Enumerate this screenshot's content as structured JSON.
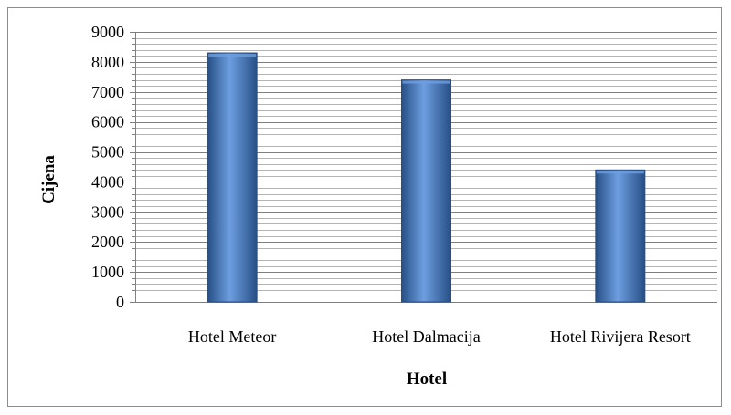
{
  "chart_data": {
    "type": "bar",
    "categories": [
      "Hotel Meteor",
      "Hotel Dalmacija",
      "Hotel Rivijera Resort"
    ],
    "values": [
      8300,
      7400,
      4400
    ],
    "title": "",
    "xlabel": "Hotel",
    "ylabel": "Cijena",
    "ylim": [
      0,
      9000
    ],
    "yticks": [
      0,
      1000,
      2000,
      3000,
      4000,
      5000,
      6000,
      7000,
      8000,
      9000
    ],
    "minor_gridlines": true,
    "legend": "none",
    "bar_color": "#4a7ebb",
    "bar_dark": "#274f85",
    "bar_light": "#6d9ee0"
  }
}
